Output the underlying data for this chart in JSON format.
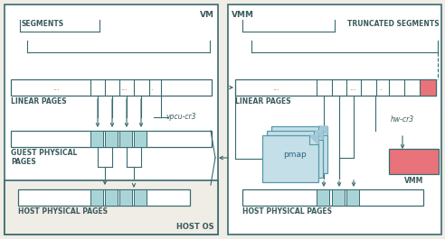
{
  "bg_color": "#f0ece6",
  "border_color": "#3a6b6e",
  "teal_color": "#a8d4d8",
  "teal_dark": "#3a6b6e",
  "pink_color": "#e8737a",
  "text_color": "#3a5a5c",
  "red_dot_color": "#cc4444",
  "labels": {
    "vm": "VM",
    "vmm": "VMM",
    "host_os": "HOST OS",
    "segments": "SEGMENTS",
    "truncated_segments": "TRUNCATED SEGMENTS",
    "linear_pages": "LINEAR PAGES",
    "guest_physical": "GUEST PHYSICAL\nPAGES",
    "host_physical": "HOST PHYSICAL PAGES",
    "vpcu_cr3": "vpcu-cr3",
    "hw_cr3": "hw-cr3",
    "pmap": "pmap",
    "vmm_label": "VMM"
  }
}
